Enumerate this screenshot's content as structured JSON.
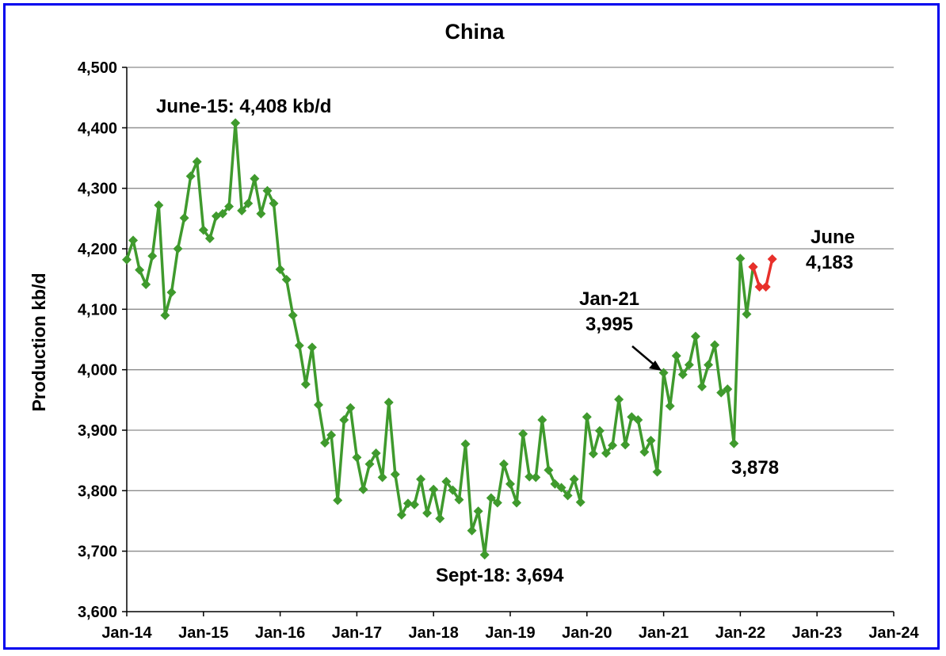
{
  "chart_data": {
    "type": "line",
    "title": "China",
    "ylabel": "Production kb/d",
    "xlabel": "",
    "ylim": [
      3600,
      4500
    ],
    "yticks": [
      3600,
      3700,
      3800,
      3900,
      4000,
      4100,
      4200,
      4300,
      4400,
      4500
    ],
    "ytick_labels": [
      "3,600",
      "3,700",
      "3,800",
      "3,900",
      "4,000",
      "4,100",
      "4,200",
      "4,300",
      "4,400",
      "4,500"
    ],
    "xlim": [
      "Jan-14",
      "Jan-24"
    ],
    "xtick_labels": [
      "Jan-14",
      "Jan-15",
      "Jan-16",
      "Jan-17",
      "Jan-18",
      "Jan-19",
      "Jan-20",
      "Jan-21",
      "Jan-22",
      "Jan-23",
      "Jan-24"
    ],
    "grid": "horizontal",
    "legend": "none",
    "series": [
      {
        "color": "#3f9a2d",
        "marker": "diamond",
        "start": "Jan-14",
        "values": [
          4182,
          4214,
          4165,
          4141,
          4188,
          4272,
          4090,
          4128,
          4200,
          4251,
          4320,
          4344,
          4231,
          4217,
          4254,
          4258,
          4270,
          4408,
          4263,
          4275,
          4316,
          4258,
          4296,
          4275,
          4166,
          4149,
          4090,
          4040,
          3976,
          4037,
          3942,
          3879,
          3892,
          3784,
          3917,
          3937,
          3855,
          3802,
          3844,
          3862,
          3822,
          3946,
          3827,
          3760,
          3779,
          3777,
          3819,
          3763,
          3802,
          3754,
          3815,
          3801,
          3785,
          3877,
          3734,
          3766,
          3694,
          3788,
          3780,
          3844,
          3811,
          3780,
          3894,
          3823,
          3822,
          3917,
          3834,
          3811,
          3805,
          3792,
          3819,
          3781,
          3922,
          3861,
          3899,
          3862,
          3875,
          3951,
          3876,
          3922,
          3917,
          3864,
          3883,
          3831,
          3995,
          3940,
          4023,
          3992,
          4008,
          4055,
          3972,
          4008,
          4041,
          3962,
          3968,
          3878,
          4184,
          4092,
          4170
        ]
      },
      {
        "color": "#e8302b",
        "marker": "diamond",
        "start": "Mar-22",
        "values": [
          4170,
          4137,
          4137,
          4183
        ]
      }
    ],
    "annotations": [
      {
        "text": "June-15: 4,408 kb/d"
      },
      {
        "text": "Sept-18: 3,694"
      },
      {
        "text": "Jan-21"
      },
      {
        "text": "3,995"
      },
      {
        "text": "3,878"
      },
      {
        "text": "June"
      },
      {
        "text": "4,183"
      }
    ]
  }
}
